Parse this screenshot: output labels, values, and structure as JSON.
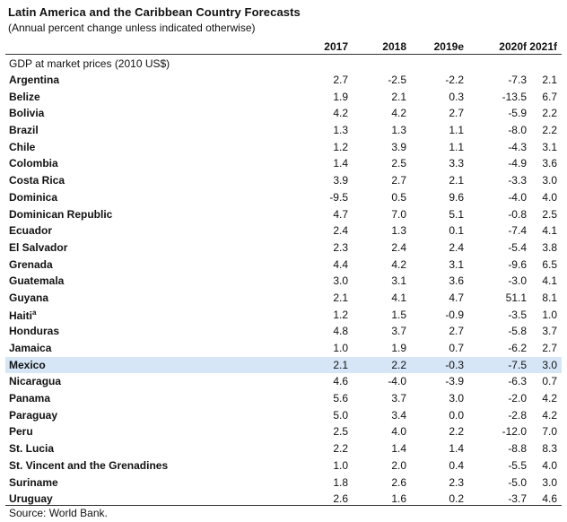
{
  "title": "Latin America and the Caribbean Country Forecasts",
  "subtitle": "(Annual percent change unless indicated otherwise)",
  "columns": [
    "2017",
    "2018",
    "2019e",
    "2020f",
    "2021f"
  ],
  "section_label": "GDP at market prices (2010 US$)",
  "rows": [
    {
      "name": "Argentina",
      "values": [
        "2.7",
        "-2.5",
        "-2.2",
        "-7.3",
        "2.1"
      ]
    },
    {
      "name": "Belize",
      "values": [
        "1.9",
        "2.1",
        "0.3",
        "-13.5",
        "6.7"
      ]
    },
    {
      "name": "Bolivia",
      "values": [
        "4.2",
        "4.2",
        "2.7",
        "-5.9",
        "2.2"
      ]
    },
    {
      "name": "Brazil",
      "values": [
        "1.3",
        "1.3",
        "1.1",
        "-8.0",
        "2.2"
      ]
    },
    {
      "name": "Chile",
      "values": [
        "1.2",
        "3.9",
        "1.1",
        "-4.3",
        "3.1"
      ]
    },
    {
      "name": "Colombia",
      "values": [
        "1.4",
        "2.5",
        "3.3",
        "-4.9",
        "3.6"
      ]
    },
    {
      "name": "Costa Rica",
      "values": [
        "3.9",
        "2.7",
        "2.1",
        "-3.3",
        "3.0"
      ]
    },
    {
      "name": "Dominica",
      "values": [
        "-9.5",
        "0.5",
        "9.6",
        "-4.0",
        "4.0"
      ]
    },
    {
      "name": "Dominican Republic",
      "values": [
        "4.7",
        "7.0",
        "5.1",
        "-0.8",
        "2.5"
      ]
    },
    {
      "name": "Ecuador",
      "values": [
        "2.4",
        "1.3",
        "0.1",
        "-7.4",
        "4.1"
      ]
    },
    {
      "name": "El Salvador",
      "values": [
        "2.3",
        "2.4",
        "2.4",
        "-5.4",
        "3.8"
      ]
    },
    {
      "name": "Grenada",
      "values": [
        "4.4",
        "4.2",
        "3.1",
        "-9.6",
        "6.5"
      ]
    },
    {
      "name": "Guatemala",
      "values": [
        "3.0",
        "3.1",
        "3.6",
        "-3.0",
        "4.1"
      ]
    },
    {
      "name": "Guyana",
      "values": [
        "2.1",
        "4.1",
        "4.7",
        "51.1",
        "8.1"
      ]
    },
    {
      "name": "Haiti",
      "sup": "a",
      "values": [
        "1.2",
        "1.5",
        "-0.9",
        "-3.5",
        "1.0"
      ]
    },
    {
      "name": "Honduras",
      "values": [
        "4.8",
        "3.7",
        "2.7",
        "-5.8",
        "3.7"
      ]
    },
    {
      "name": "Jamaica",
      "values": [
        "1.0",
        "1.9",
        "0.7",
        "-6.2",
        "2.7"
      ]
    },
    {
      "name": "Mexico",
      "highlight": true,
      "values": [
        "2.1",
        "2.2",
        "-0.3",
        "-7.5",
        "3.0"
      ]
    },
    {
      "name": "Nicaragua",
      "values": [
        "4.6",
        "-4.0",
        "-3.9",
        "-6.3",
        "0.7"
      ]
    },
    {
      "name": "Panama",
      "values": [
        "5.6",
        "3.7",
        "3.0",
        "-2.0",
        "4.2"
      ]
    },
    {
      "name": "Paraguay",
      "values": [
        "5.0",
        "3.4",
        "0.0",
        "-2.8",
        "4.2"
      ]
    },
    {
      "name": "Peru",
      "values": [
        "2.5",
        "4.0",
        "2.2",
        "-12.0",
        "7.0"
      ]
    },
    {
      "name": "St. Lucia",
      "values": [
        "2.2",
        "1.4",
        "1.4",
        "-8.8",
        "8.3"
      ]
    },
    {
      "name": "St. Vincent and the Grenadines",
      "values": [
        "1.0",
        "2.0",
        "0.4",
        "-5.5",
        "4.0"
      ]
    },
    {
      "name": "Suriname",
      "values": [
        "1.8",
        "2.6",
        "2.3",
        "-5.0",
        "3.0"
      ]
    },
    {
      "name": "Uruguay",
      "values": [
        "2.6",
        "1.6",
        "0.2",
        "-3.7",
        "4.6"
      ]
    }
  ],
  "source": "Source: World Bank.",
  "colors": {
    "highlight": "#d6e6f7"
  }
}
